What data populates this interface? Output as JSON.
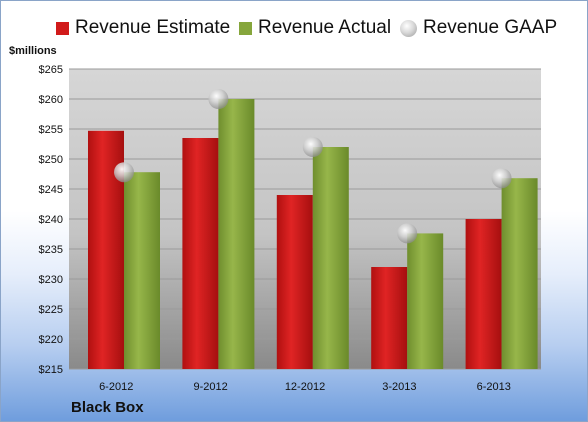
{
  "legend": {
    "estimate": "Revenue Estimate",
    "actual": "Revenue Actual",
    "gaap": "Revenue GAAP"
  },
  "unit_label": "$millions",
  "company": "Black Box",
  "colors": {
    "estimate": "#d11a1a",
    "actual": "#86a63c",
    "gaap": "#c8c8c8",
    "plot_background": "#d0d0d0",
    "gridline": "#9a9a9a"
  },
  "chart_data": {
    "type": "bar",
    "categories": [
      "6-2012",
      "9-2012",
      "12-2012",
      "3-2013",
      "6-2013"
    ],
    "series": [
      {
        "name": "Revenue Estimate",
        "type": "bar",
        "values": [
          254.7,
          253.5,
          244.0,
          232.0,
          240.0
        ]
      },
      {
        "name": "Revenue Actual",
        "type": "bar",
        "values": [
          247.8,
          260.0,
          252.0,
          237.6,
          246.8
        ]
      },
      {
        "name": "Revenue GAAP",
        "type": "scatter",
        "values": [
          247.8,
          260.0,
          252.0,
          237.6,
          246.8
        ]
      }
    ],
    "ylabel": "$millions",
    "ylim": [
      215,
      265
    ],
    "yticks": [
      215,
      220,
      225,
      230,
      235,
      240,
      245,
      250,
      255,
      260,
      265
    ],
    "ytick_labels": [
      "$215",
      "$220",
      "$225",
      "$230",
      "$235",
      "$240",
      "$245",
      "$250",
      "$255",
      "$260",
      "$265"
    ],
    "grid": true,
    "legend_position": "top"
  }
}
